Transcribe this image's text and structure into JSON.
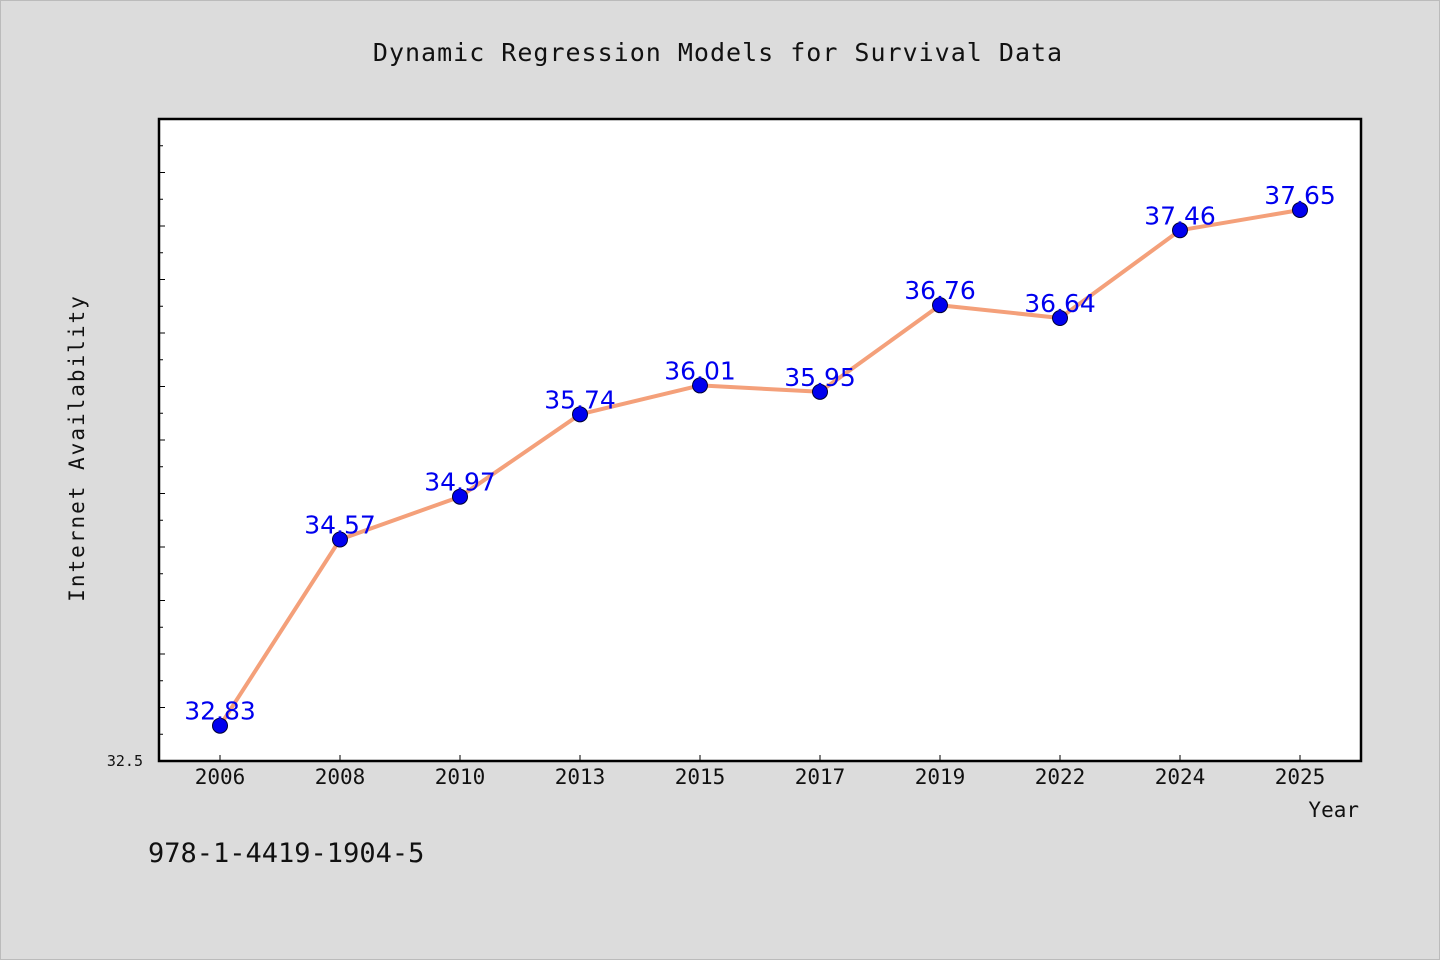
{
  "chart_data": {
    "type": "line",
    "title": "Dynamic Regression Models for Survival Data",
    "xlabel": "Year",
    "ylabel": "Internet Availability",
    "categories": [
      "2006",
      "2008",
      "2010",
      "2013",
      "2015",
      "2017",
      "2019",
      "2022",
      "2024",
      "2025"
    ],
    "series": [
      {
        "values": [
          32.83,
          34.57,
          34.97,
          35.74,
          36.01,
          35.95,
          36.76,
          36.64,
          37.46,
          37.65
        ],
        "data_labels": [
          "32.83",
          "34.57",
          "34.97",
          "35.74",
          "36.01",
          "35.95",
          "36.76",
          "36.64",
          "37.46",
          "37.65"
        ]
      }
    ],
    "ylim": [
      32.5,
      38.5
    ],
    "y_tick_labels": [
      "32.5"
    ],
    "grid": false,
    "legend": "none",
    "colors": {
      "line": "#f4a07a",
      "marker": "#0000ee",
      "data_label": "#0000ee",
      "background": "#dcdcdc",
      "plot_background": "#ffffff"
    }
  },
  "annotation": "978-1-4419-1904-5"
}
